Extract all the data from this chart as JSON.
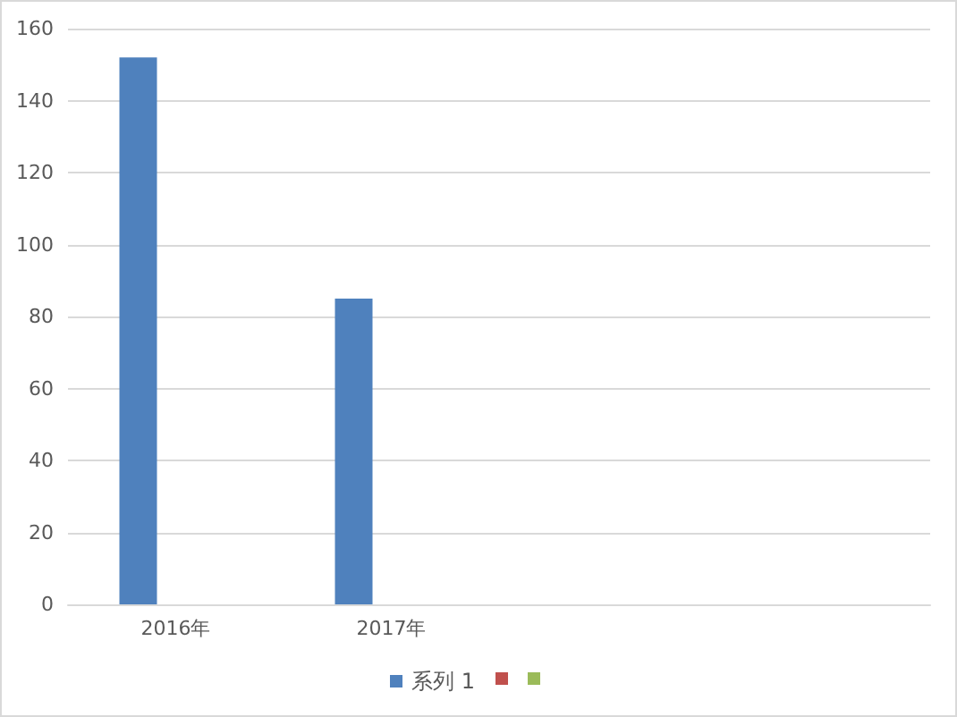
{
  "chart_data": {
    "type": "bar",
    "categories": [
      "2016年",
      "2017年",
      null,
      null
    ],
    "series": [
      {
        "name": "系列 1",
        "color": "#4f81bd",
        "values": [
          152,
          85,
          null,
          null
        ]
      },
      {
        "color": "#c0504d",
        "values": [
          null,
          null,
          null,
          null
        ]
      },
      {
        "color": "#9bbb59",
        "values": [
          null,
          null,
          null,
          null
        ]
      }
    ],
    "ylim": [
      0,
      160
    ],
    "yticks": [
      0,
      20,
      40,
      60,
      80,
      100,
      120,
      140,
      160
    ],
    "grid": "y",
    "legend": "bottom"
  }
}
